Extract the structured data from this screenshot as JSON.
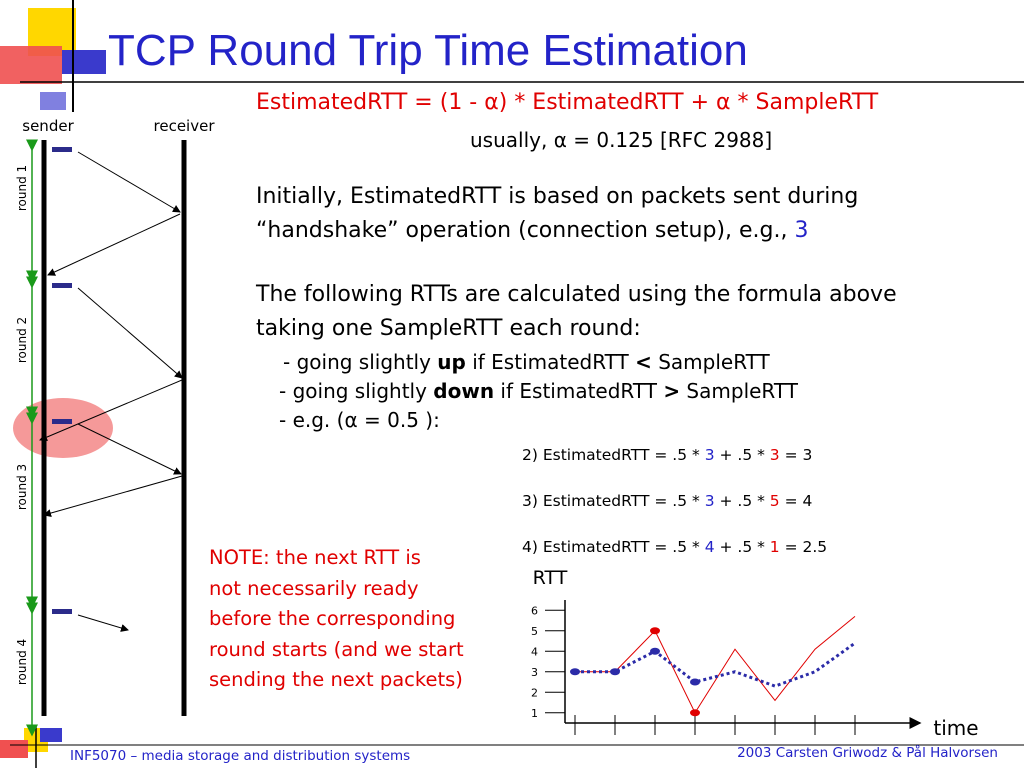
{
  "title": "TCP Round Trip Time Estimation",
  "formula": "EstimatedRTT = (1 - α) * EstimatedRTT + α * SampleRTT",
  "usually": "usually, α = 0.125 [RFC 2988]",
  "paragraph_1": {
    "lines": [
      "Initially, EstimatedRTT is based on packets sent during",
      "“handshake” operation (connection setup), e.g., "
    ],
    "example": "3"
  },
  "paragraph_2": {
    "lines": [
      "The following RTTs are calculated using the formula above",
      "taking one SampleRTT each round:"
    ]
  },
  "bullets": [
    [
      "- going slightly ",
      "up",
      " if EstimatedRTT ",
      "<",
      " SampleRTT"
    ],
    [
      "- going slightly ",
      "down",
      " if EstimatedRTT ",
      ">",
      " SampleRTT"
    ],
    [
      "- e.g. (α = 0.5 ):"
    ]
  ],
  "examples": [
    [
      "2) EstimatedRTT = .5 * ",
      "3",
      " + .5 * ",
      "3",
      " = 3"
    ],
    [
      "3) EstimatedRTT = .5 * ",
      "3",
      " + .5 * ",
      "5",
      " = 4"
    ],
    [
      "4) EstimatedRTT = .5 * ",
      "4",
      " + .5 * ",
      "1",
      " = 2.5"
    ]
  ],
  "note": [
    "NOTE: the next RTT is",
    "not necessarily ready",
    "before the corresponding",
    "round starts (and we start",
    "sending the next packets)"
  ],
  "diagram": {
    "sender": "sender",
    "receiver": "receiver",
    "rounds": [
      "round 1",
      "round 2",
      "round 3",
      "round 4"
    ]
  },
  "rtt_chart": {
    "y_label": "RTT",
    "x_label": "time",
    "ylim": [
      0.5,
      6.5
    ],
    "yticks": [
      1,
      2,
      3,
      4,
      5,
      6
    ],
    "series": [
      {
        "color": "#e00000",
        "values": [
          3,
          3,
          5,
          1,
          4.1,
          1.6,
          4.1,
          5.7
        ]
      },
      {
        "color": "#2b2ba8",
        "values": [
          3,
          3,
          4,
          2.5,
          3,
          2.3,
          3,
          4.4
        ]
      }
    ]
  },
  "footer": {
    "left": "INF5070 – media storage and distribution systems",
    "right": "2003  Carsten Griwodz & Pål Halvorsen"
  }
}
